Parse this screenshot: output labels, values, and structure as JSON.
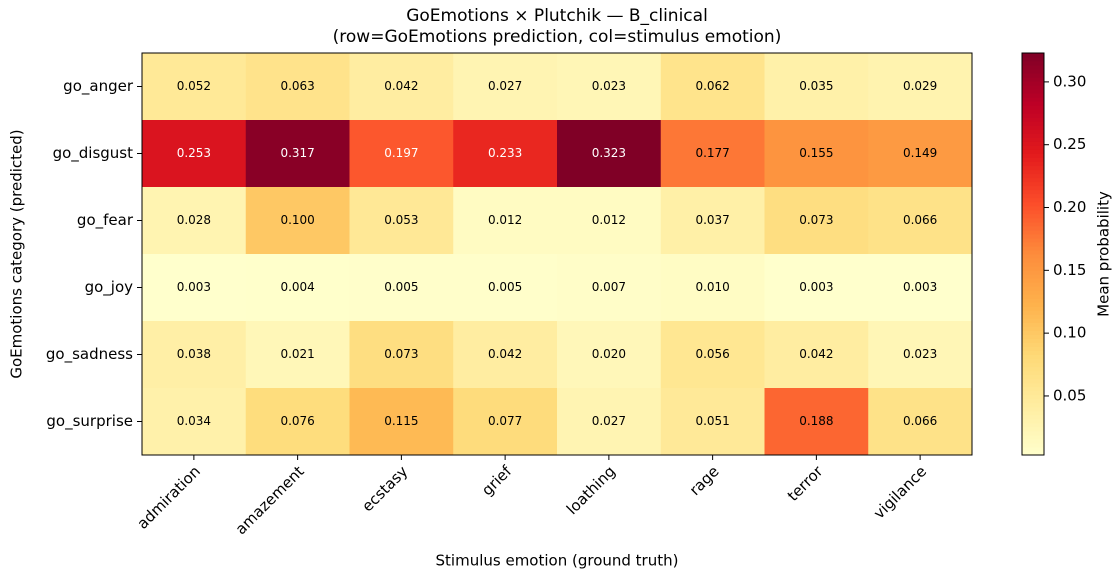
{
  "chart_data": {
    "type": "heatmap",
    "title": "GoEmotions × Plutchik — B_clinical",
    "subtitle": "(row=GoEmotions prediction, col=stimulus emotion)",
    "x_label": "Stimulus emotion (ground truth)",
    "y_label": "GoEmotions category (predicted)",
    "colorbar_label": "Mean probability",
    "x": [
      "admiration",
      "amazement",
      "ecstasy",
      "grief",
      "loathing",
      "rage",
      "terror",
      "vigilance"
    ],
    "y": [
      "go_anger",
      "go_disgust",
      "go_fear",
      "go_joy",
      "go_sadness",
      "go_surprise"
    ],
    "values": [
      [
        0.052,
        0.063,
        0.042,
        0.027,
        0.023,
        0.062,
        0.035,
        0.029
      ],
      [
        0.253,
        0.317,
        0.197,
        0.233,
        0.323,
        0.177,
        0.155,
        0.149
      ],
      [
        0.028,
        0.1,
        0.053,
        0.012,
        0.012,
        0.037,
        0.073,
        0.066
      ],
      [
        0.003,
        0.004,
        0.005,
        0.005,
        0.007,
        0.01,
        0.003,
        0.003
      ],
      [
        0.038,
        0.021,
        0.073,
        0.042,
        0.02,
        0.056,
        0.042,
        0.023
      ],
      [
        0.034,
        0.076,
        0.115,
        0.077,
        0.027,
        0.051,
        0.188,
        0.066
      ]
    ],
    "value_labels": [
      [
        "0.052",
        "0.063",
        "0.042",
        "0.027",
        "0.023",
        "0.062",
        "0.035",
        "0.029"
      ],
      [
        "0.253",
        "0.317",
        "0.197",
        "0.233",
        "0.323",
        "0.177",
        "0.155",
        "0.149"
      ],
      [
        "0.028",
        "0.100",
        "0.053",
        "0.012",
        "0.012",
        "0.037",
        "0.073",
        "0.066"
      ],
      [
        "0.003",
        "0.004",
        "0.005",
        "0.005",
        "0.007",
        "0.010",
        "0.003",
        "0.003"
      ],
      [
        "0.038",
        "0.021",
        "0.073",
        "0.042",
        "0.020",
        "0.056",
        "0.042",
        "0.023"
      ],
      [
        "0.034",
        "0.076",
        "0.115",
        "0.077",
        "0.027",
        "0.051",
        "0.188",
        "0.066"
      ]
    ],
    "colormap": [
      "#ffffcc",
      "#ffeda0",
      "#fed976",
      "#feb24c",
      "#fd8d3c",
      "#fc4e2a",
      "#e31a1c",
      "#bd0026",
      "#800026"
    ],
    "zlim": [
      0.003,
      0.323
    ],
    "zticks": [
      0.05,
      {
        "value": 0.1,
        "label": "0.10"
      },
      0.15,
      {
        "value": 0.2,
        "label": "0.20"
      },
      0.25,
      {
        "value": 0.3,
        "label": "0.30"
      }
    ]
  }
}
